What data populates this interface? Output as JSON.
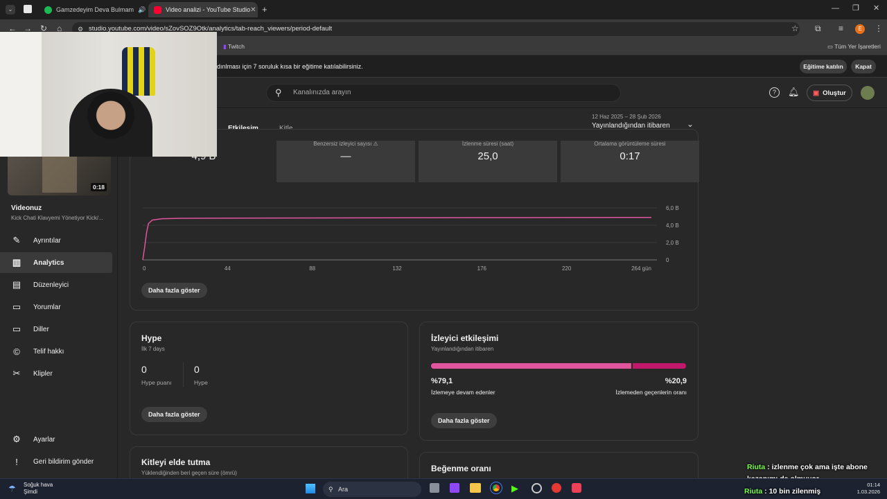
{
  "browser": {
    "tabs": [
      {
        "title": "Gamzedeyim Deva Bulmam",
        "favicon_color": "#1db954"
      },
      {
        "title": "Video analizi - YouTube Studio",
        "favicon_color": "#ff0033"
      }
    ],
    "url": "studio.youtube.com/video/sZovSOZ9Otk/analytics/tab-reach_viewers/period-default",
    "bookmarks": [
      "Twitch",
      "Tüm Yer İşaretleri"
    ],
    "profile_letter": "E"
  },
  "banner": {
    "text": "dınlması için 7 soruluk kısa bir eğitime katılabilirsiniz.",
    "join_label": "Eğitime katılın",
    "close_label": "Kapat"
  },
  "header": {
    "search_placeholder": "Kanalınızda arayın",
    "create_label": "Oluştur"
  },
  "sidebar": {
    "video_duration": "0:18",
    "video_heading": "Videonuz",
    "video_title": "Kick Chati Klavyemi Yönetiyor Kick/...",
    "items": [
      {
        "label": "Ayrıntılar",
        "icon": "pencil-icon"
      },
      {
        "label": "Analytics",
        "icon": "analytics-icon"
      },
      {
        "label": "Düzenleyici",
        "icon": "editor-icon"
      },
      {
        "label": "Yorumlar",
        "icon": "comments-icon"
      },
      {
        "label": "Diller",
        "icon": "subtitles-icon"
      },
      {
        "label": "Telif hakkı",
        "icon": "copyright-icon"
      },
      {
        "label": "Klipler",
        "icon": "scissors-icon"
      }
    ],
    "settings_label": "Ayarlar",
    "feedback_label": "Geri bildirim gönder"
  },
  "analytics": {
    "tabs": [
      "Etkileşim",
      "Kitle"
    ],
    "active_tab": "Etkileşim",
    "period_range": "12 Haz 2025 – 28 Şub 2026",
    "period_label": "Yayınlandığından itibaren",
    "metrics": [
      {
        "label": "",
        "value": "4,9 B"
      },
      {
        "label": "Benzersiz izleyici sayısı",
        "value": "—"
      },
      {
        "label": "İzlenme süresi (saat)",
        "value": "25,0"
      },
      {
        "label": "Ortalama görüntüleme süresi",
        "value": "0:17"
      }
    ],
    "show_more": "Daha fazla göster"
  },
  "chart_data": {
    "type": "line",
    "x_ticks": [
      "0",
      "44",
      "88",
      "132",
      "176",
      "220",
      "264 gün"
    ],
    "y_ticks": [
      "0",
      "2,0 B",
      "4,0 B",
      "6,0 B"
    ],
    "x": [
      0,
      1,
      2,
      3,
      5,
      10,
      20,
      44,
      88,
      132,
      176,
      220,
      264
    ],
    "y": [
      0,
      1.5,
      3.2,
      4.2,
      4.6,
      4.75,
      4.8,
      4.82,
      4.84,
      4.86,
      4.88,
      4.89,
      4.9
    ],
    "xlim": [
      0,
      264
    ],
    "ylim": [
      0,
      6
    ],
    "series_color": "#e0559e",
    "grid": true
  },
  "hype": {
    "title": "Hype",
    "subtitle": "İlk 7 days",
    "points_value": "0",
    "points_label": "Hype puanı",
    "hype_value": "0",
    "hype_label": "Hype",
    "show_more": "Daha fazla göster"
  },
  "engagement": {
    "title": "İzleyici etkileşimi",
    "subtitle": "Yayınlandığından itibaren",
    "continue_percent": "%79,1",
    "continue_label": "İzlemeye devam edenler",
    "skip_percent": "%20,9",
    "skip_label": "İzlemeden geçenlerin oranı",
    "continue_fraction": 0.791,
    "show_more": "Daha fazla göster"
  },
  "retention": {
    "title": "Kitleyi elde tutma",
    "subtitle": "Yüklendiğinden beri geçen süre (ömrü)"
  },
  "likes": {
    "title": "Beğenme oranı"
  },
  "chat": [
    {
      "user": "Riuta",
      "message": ": izlenme çok ama işte abone kazanımı da olmuyor"
    },
    {
      "user": "Riuta",
      "message": ": 10 bin zilenmiş"
    }
  ],
  "taskbar": {
    "weather_title": "Soğuk hava",
    "weather_sub": "Şimdi",
    "search_label": "Ara",
    "time": "01:14",
    "date": "1.03.2026"
  }
}
